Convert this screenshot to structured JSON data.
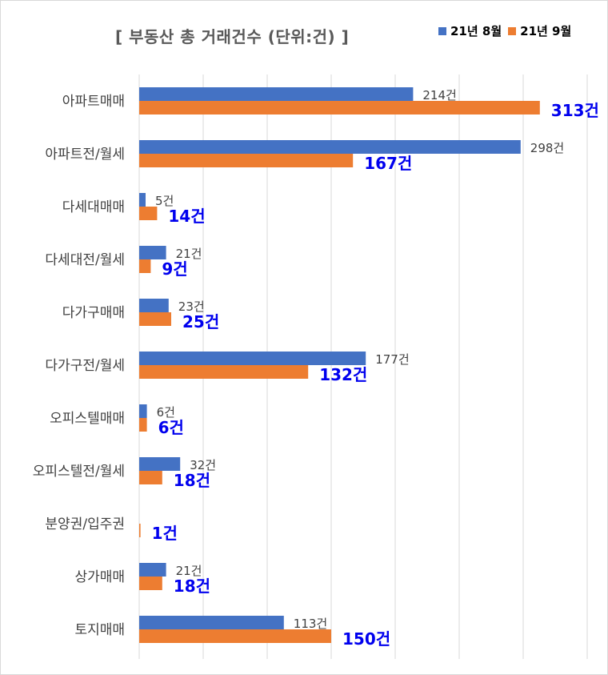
{
  "chart_data": {
    "type": "bar",
    "orientation": "horizontal",
    "title": "[ 부동산 총 거래건수 (단위:건) ]",
    "categories": [
      "아파트매매",
      "아파트전/월세",
      "다세대매매",
      "다세대전/월세",
      "다가구매매",
      "다가구전/월세",
      "오피스텔매매",
      "오피스텔전/월세",
      "분양권/입주권",
      "상가매매",
      "토지매매"
    ],
    "series": [
      {
        "name": "21년 8월",
        "color": "#4472c4",
        "values": [
          214,
          298,
          5,
          21,
          23,
          177,
          6,
          32,
          0,
          21,
          113
        ],
        "labels": [
          "214건",
          "298건",
          "5건",
          "21건",
          "23건",
          "177건",
          "6건",
          "32건",
          "",
          "21건",
          "113건"
        ]
      },
      {
        "name": "21년 9월",
        "color": "#ed7d31",
        "values": [
          313,
          167,
          14,
          9,
          25,
          132,
          6,
          18,
          1,
          18,
          150
        ],
        "labels": [
          "313건",
          "167건",
          "14건",
          "9건",
          "25건",
          "132건",
          "6건",
          "18건",
          "1건",
          "18건",
          "150건"
        ]
      }
    ],
    "xlim": [
      0,
      350
    ],
    "grid": true,
    "legend_position": "top-right",
    "label_colors": {
      "series1": "#404040",
      "series2": "#0000ee"
    }
  }
}
